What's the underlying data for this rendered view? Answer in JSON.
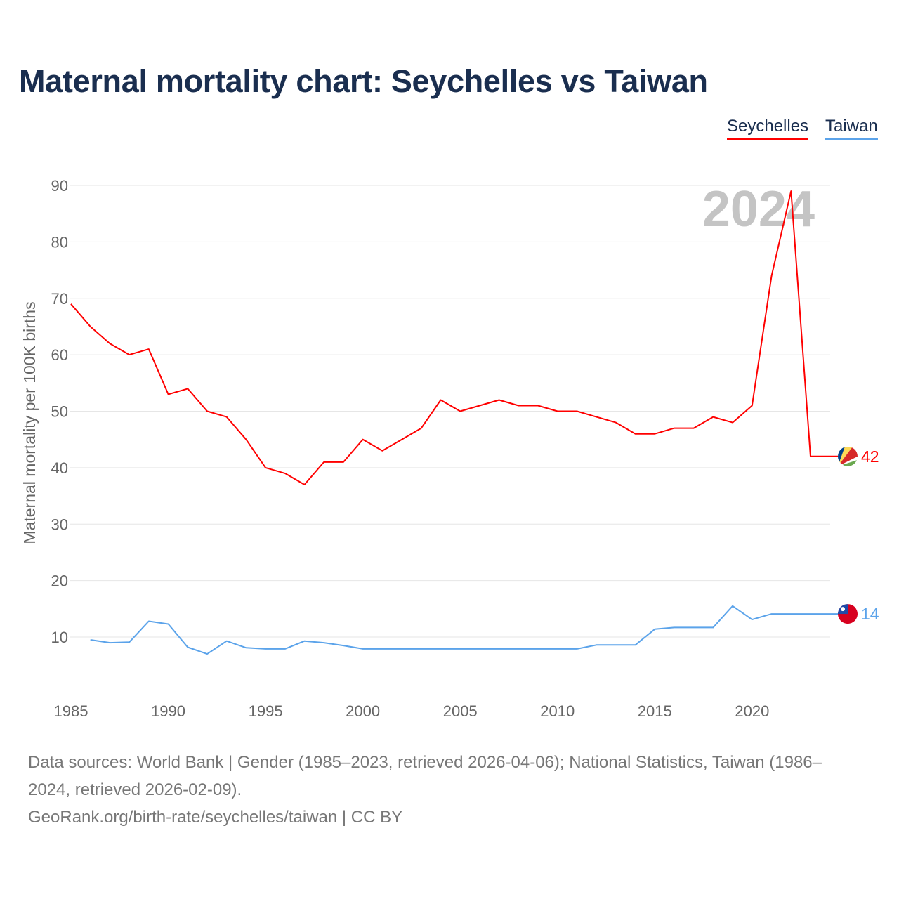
{
  "chart_data": {
    "type": "line",
    "title": "Maternal mortality chart: Seychelles vs Taiwan",
    "ylabel": "Maternal mortality per 100K births",
    "xlabel": "",
    "xlim": [
      1985,
      2024
    ],
    "ylim": [
      0,
      90
    ],
    "x_ticks": [
      "1985",
      "1990",
      "1995",
      "2000",
      "2005",
      "2010",
      "2015",
      "2020"
    ],
    "y_ticks": [
      "10",
      "20",
      "30",
      "40",
      "50",
      "60",
      "70",
      "80",
      "90"
    ],
    "grid": true,
    "legend_position": "top-right",
    "year_watermark": "2024",
    "series": [
      {
        "name": "Seychelles",
        "color": "#ff0000",
        "end_label": "42",
        "x": [
          1985,
          1986,
          1987,
          1988,
          1989,
          1990,
          1991,
          1992,
          1993,
          1994,
          1995,
          1996,
          1997,
          1998,
          1999,
          2000,
          2001,
          2002,
          2003,
          2004,
          2005,
          2006,
          2007,
          2008,
          2009,
          2010,
          2011,
          2012,
          2013,
          2014,
          2015,
          2016,
          2017,
          2018,
          2019,
          2020,
          2021,
          2022,
          2023
        ],
        "values": [
          69,
          65,
          62,
          60,
          61,
          53,
          54,
          50,
          49,
          45,
          40,
          39,
          37,
          41,
          41,
          45,
          43,
          45,
          47,
          52,
          50,
          51,
          52,
          51,
          51,
          50,
          50,
          49,
          48,
          46,
          46,
          47,
          47,
          49,
          48,
          51,
          74,
          89,
          42
        ]
      },
      {
        "name": "Taiwan",
        "color": "#5ba3ea",
        "end_label": "14",
        "x": [
          1986,
          1987,
          1988,
          1989,
          1990,
          1991,
          1992,
          1993,
          1994,
          1995,
          1996,
          1997,
          1998,
          1999,
          2000,
          2001,
          2002,
          2003,
          2004,
          2005,
          2006,
          2007,
          2008,
          2009,
          2010,
          2011,
          2012,
          2013,
          2014,
          2015,
          2016,
          2017,
          2018,
          2019,
          2020,
          2021,
          2022,
          2023,
          2024
        ],
        "values": [
          9.5,
          9.0,
          9.1,
          12.8,
          12.3,
          8.2,
          7.0,
          9.3,
          8.1,
          7.9,
          7.9,
          9.3,
          9.0,
          8.5,
          7.9,
          7.9,
          7.9,
          7.9,
          7.9,
          7.9,
          7.9,
          7.9,
          7.9,
          7.9,
          7.9,
          7.9,
          8.6,
          8.6,
          8.6,
          11.4,
          11.7,
          11.7,
          11.7,
          15.5,
          13.1,
          14.1,
          14.1,
          14.1,
          14.1
        ]
      }
    ]
  },
  "footer": {
    "sources": "Data sources: World Bank | Gender (1985–2023, retrieved 2026-04-06); National Statistics, Taiwan (1986–2024, retrieved 2026-02-09).",
    "link": "GeoRank.org/birth-rate/seychelles/taiwan | CC BY"
  }
}
